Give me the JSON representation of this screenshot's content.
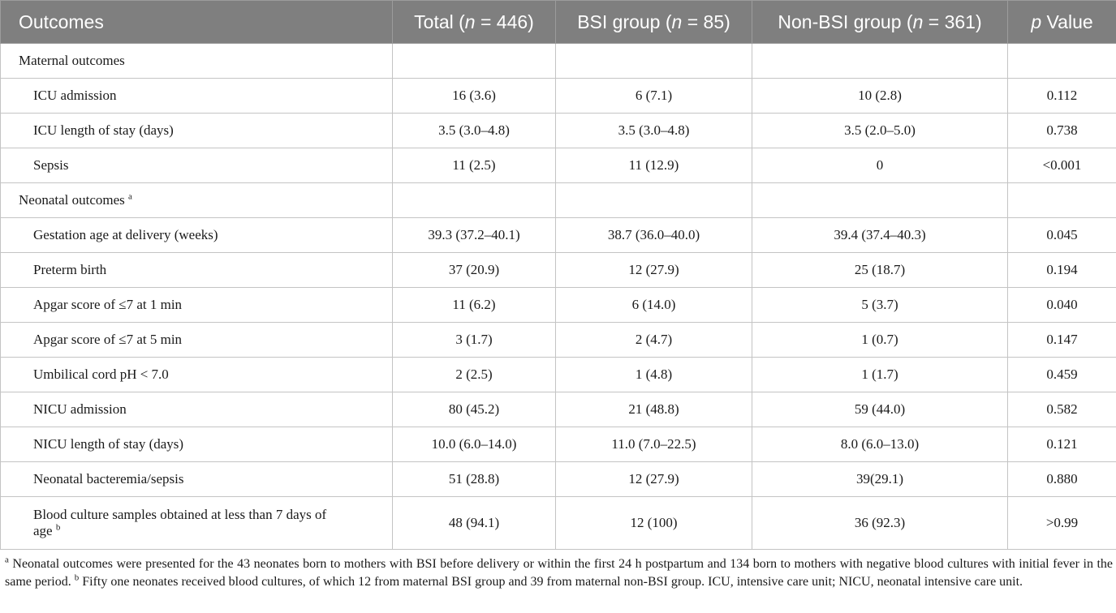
{
  "table": {
    "headers": {
      "outcomes": "Outcomes",
      "total": {
        "pre": "Total (",
        "n": "n",
        "post": " = 446)"
      },
      "bsi": {
        "pre": "BSI group (",
        "n": "n",
        "post": " = 85)"
      },
      "nonbsi": {
        "pre": "Non-BSI group (",
        "n": "n",
        "post": " = 361)"
      },
      "pvalue": {
        "p": "p",
        "post": " Value"
      }
    },
    "sections": {
      "maternal": {
        "label": "Maternal outcomes"
      },
      "neonatal": {
        "label": "Neonatal outcomes ",
        "sup": "a"
      }
    },
    "maternal_rows": [
      {
        "label": "ICU admission",
        "total": "16 (3.6)",
        "bsi": "6 (7.1)",
        "nonbsi": "10 (2.8)",
        "p": "0.112"
      },
      {
        "label": "ICU length of stay (days)",
        "total": "3.5 (3.0–4.8)",
        "bsi": "3.5 (3.0–4.8)",
        "nonbsi": "3.5 (2.0–5.0)",
        "p": "0.738"
      },
      {
        "label": "Sepsis",
        "total": "11 (2.5)",
        "bsi": "11 (12.9)",
        "nonbsi": "0",
        "p": "<0.001"
      }
    ],
    "neonatal_rows": [
      {
        "label": "Gestation age at delivery (weeks)",
        "total": "39.3 (37.2–40.1)",
        "bsi": "38.7 (36.0–40.0)",
        "nonbsi": "39.4 (37.4–40.3)",
        "p": "0.045"
      },
      {
        "label": "Preterm birth",
        "total": "37 (20.9)",
        "bsi": "12 (27.9)",
        "nonbsi": "25 (18.7)",
        "p": "0.194"
      },
      {
        "label": "Apgar score of ≤7 at 1 min",
        "total": "11 (6.2)",
        "bsi": "6 (14.0)",
        "nonbsi": "5 (3.7)",
        "p": "0.040"
      },
      {
        "label": "Apgar score of ≤7 at 5 min",
        "total": "3 (1.7)",
        "bsi": "2 (4.7)",
        "nonbsi": "1 (0.7)",
        "p": "0.147"
      },
      {
        "label": "Umbilical cord pH < 7.0",
        "total": "2 (2.5)",
        "bsi": "1 (4.8)",
        "nonbsi": "1 (1.7)",
        "p": "0.459"
      },
      {
        "label": "NICU admission",
        "total": "80 (45.2)",
        "bsi": "21 (48.8)",
        "nonbsi": "59 (44.0)",
        "p": "0.582"
      },
      {
        "label": "NICU length of stay (days)",
        "total": "10.0 (6.0–14.0)",
        "bsi": "11.0 (7.0–22.5)",
        "nonbsi": "8.0 (6.0–13.0)",
        "p": "0.121"
      },
      {
        "label": "Neonatal bacteremia/sepsis",
        "total": "51 (28.8)",
        "bsi": "12 (27.9)",
        "nonbsi": "39(29.1)",
        "p": "0.880"
      }
    ],
    "last_row": {
      "label_line1": "Blood culture samples obtained at less than 7 days of",
      "label_line2": "age ",
      "sup": "b",
      "total": "48 (94.1)",
      "bsi": "12 (100)",
      "nonbsi": "36 (92.3)",
      "p": ">0.99"
    }
  },
  "footnote": {
    "a_mark": "a",
    "a_text": " Neonatal outcomes were presented for the 43 neonates born to mothers with BSI before delivery or within the first 24 h postpartum and 134 born to mothers with negative blood cultures with initial fever in the same period. ",
    "b_mark": "b",
    "b_text": " Fifty one neonates received blood cultures, of which 12 from maternal BSI group and 39 from maternal non-BSI group. ICU, intensive care unit; NICU, neonatal intensive care unit."
  }
}
